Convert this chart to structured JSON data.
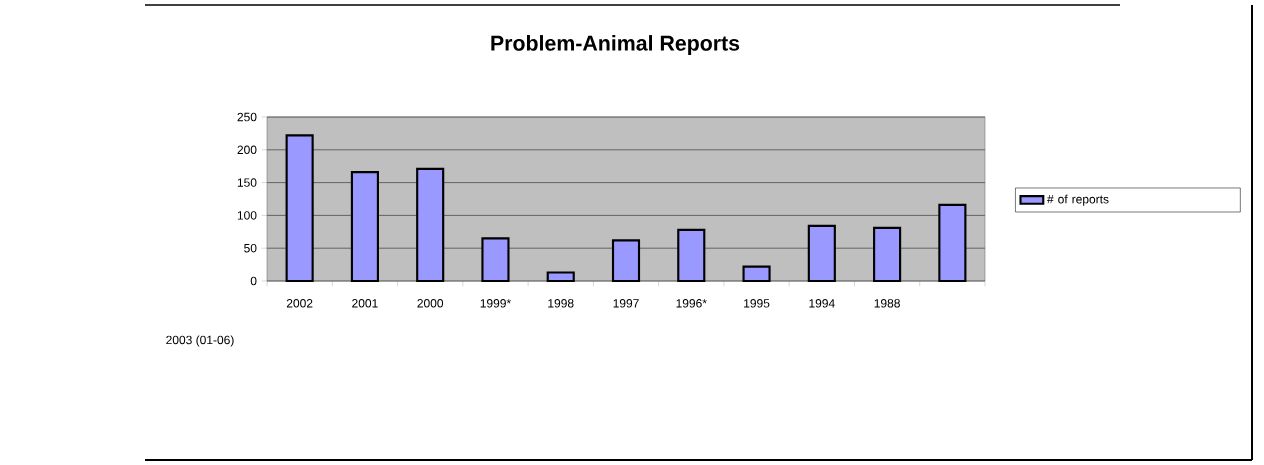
{
  "chart_data": {
    "type": "bar",
    "title": "Problem-Animal Reports",
    "categories": [
      "2002",
      "2001",
      "2000",
      "1999*",
      "1998",
      "1997",
      "1996*",
      "1995",
      "1994",
      "1988",
      null
    ],
    "series": [
      {
        "name": "# of reports",
        "color": "#9999ff",
        "values": [
          222,
          166,
          171,
          65,
          13,
          62,
          78,
          22,
          84,
          81,
          116
        ]
      }
    ],
    "ylim": [
      0,
      250
    ],
    "yticks": [
      0,
      50,
      100,
      150,
      200,
      250
    ],
    "grid": "y",
    "legend": "right",
    "annotations": [
      "2003 (01-06)"
    ]
  }
}
